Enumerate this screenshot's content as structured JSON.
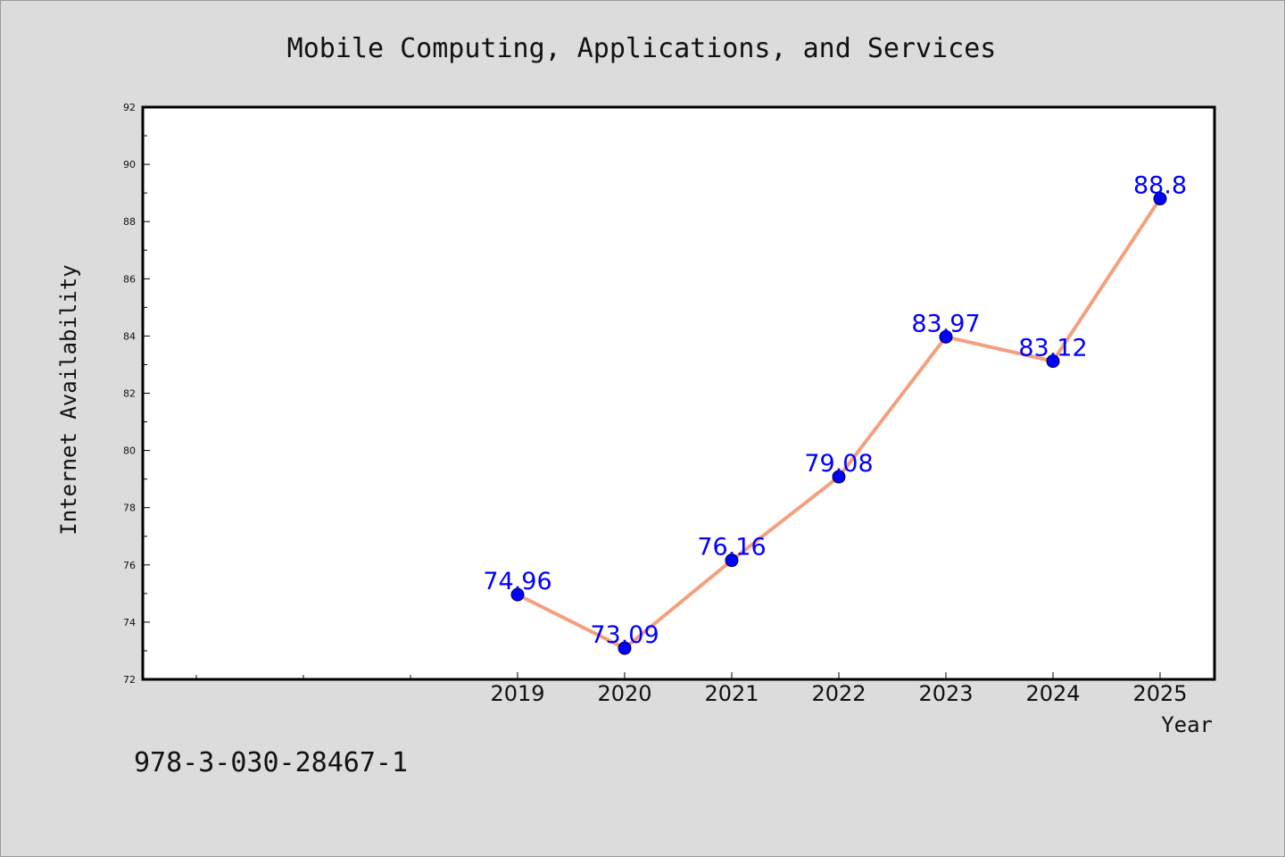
{
  "chart_data": {
    "type": "line",
    "title": "Mobile Computing, Applications, and Services",
    "xlabel": "Year",
    "ylabel": "Internet Availability",
    "categories": [
      "2019",
      "2020",
      "2021",
      "2022",
      "2023",
      "2024",
      "2025"
    ],
    "series": [
      {
        "values": [
          74.96,
          73.09,
          76.16,
          79.08,
          83.97,
          83.12,
          88.8
        ],
        "labels": [
          "74.96",
          "73.09",
          "76.16",
          "79.08",
          "83.97",
          "83.12",
          "88.8"
        ]
      }
    ],
    "ylim": [
      72,
      92
    ],
    "yticks": [
      "72",
      "74",
      "76",
      "78",
      "80",
      "82",
      "84",
      "86",
      "88",
      "90",
      "92"
    ],
    "grid": false,
    "line_color": "#f4a07c",
    "marker_color": "#0000ff",
    "label_color": "#0000ff"
  },
  "footer": {
    "isbn": "978-3-030-28467-1"
  }
}
